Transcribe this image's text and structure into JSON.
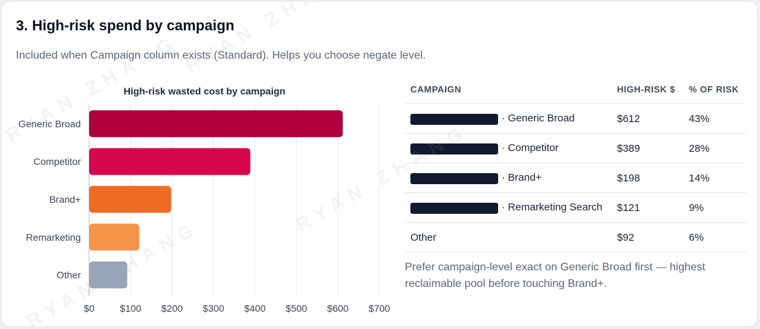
{
  "section": {
    "title": "3. High-risk spend by campaign",
    "subtitle": "Included when Campaign column exists (Standard). Helps you choose negate level."
  },
  "chart_data": {
    "type": "bar",
    "orientation": "horizontal",
    "title": "High-risk wasted cost by campaign",
    "xlabel": "",
    "ylabel": "",
    "categories": [
      "Generic Broad",
      "Competitor",
      "Brand+",
      "Remarketing",
      "Other"
    ],
    "values": [
      612,
      389,
      198,
      121,
      92
    ],
    "xlim": [
      0,
      700
    ],
    "ticks": [
      "$0",
      "$100",
      "$200",
      "$300",
      "$400",
      "$500",
      "$600",
      "$700"
    ],
    "bar_colors": [
      "#b1003e",
      "#d6064f",
      "#ee6c22",
      "#f39449",
      "#9aa4b8"
    ],
    "grid": true
  },
  "table": {
    "headers": [
      "CAMPAIGN",
      "HIGH-RISK $",
      "% OF RISK"
    ],
    "rows": [
      {
        "redacted": true,
        "campaign": "· Generic Broad",
        "amount": "$612",
        "pct": "43%"
      },
      {
        "redacted": true,
        "campaign": "· Competitor",
        "amount": "$389",
        "pct": "28%"
      },
      {
        "redacted": true,
        "campaign": "· Brand+",
        "amount": "$198",
        "pct": "14%"
      },
      {
        "redacted": true,
        "campaign": "· Remarketing Search",
        "amount": "$121",
        "pct": "9%"
      },
      {
        "redacted": false,
        "campaign": "Other",
        "amount": "$92",
        "pct": "6%"
      }
    ]
  },
  "note": "Prefer campaign-level exact on Generic Broad first — highest reclaimable pool before touching Brand+.",
  "watermark": "RYAN ZHANG"
}
